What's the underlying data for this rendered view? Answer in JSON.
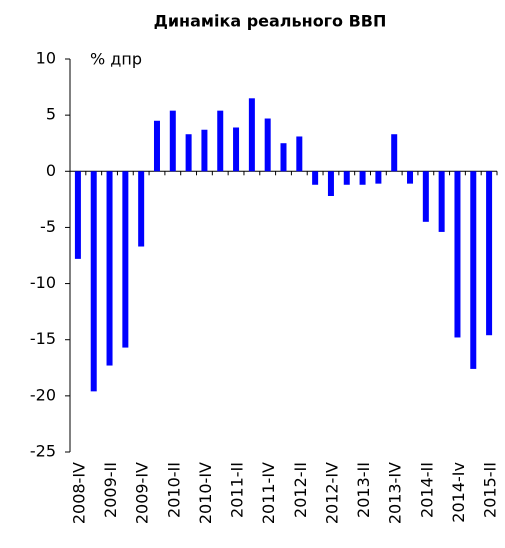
{
  "chart_data": {
    "type": "bar",
    "title": "Динаміка реального ВВП",
    "y_label": "% дпр",
    "categories": [
      "2008-IV",
      null,
      "2009-II",
      null,
      "2009-IV",
      null,
      "2010-II",
      null,
      "2010-IV",
      null,
      "2011-II",
      null,
      "2011-IV",
      null,
      "2012-II",
      null,
      "2012-IV",
      null,
      "2013-II",
      null,
      "2013-IV",
      null,
      "2014-II",
      null,
      "2014-Iv",
      null,
      "2015-II"
    ],
    "values": [
      -7.8,
      -19.6,
      -17.3,
      -15.7,
      -6.7,
      4.5,
      5.4,
      3.3,
      3.7,
      5.4,
      3.9,
      6.5,
      4.7,
      2.5,
      3.1,
      -1.2,
      -2.2,
      -1.2,
      -1.2,
      -1.1,
      3.3,
      -1.1,
      -4.5,
      -5.4,
      -14.8,
      -17.6,
      -14.6
    ],
    "color": "#0000ff",
    "ylim": [
      -25,
      10
    ],
    "yticks": [
      -25,
      -20,
      -15,
      -10,
      -5,
      0,
      5,
      10
    ],
    "grid": false
  }
}
